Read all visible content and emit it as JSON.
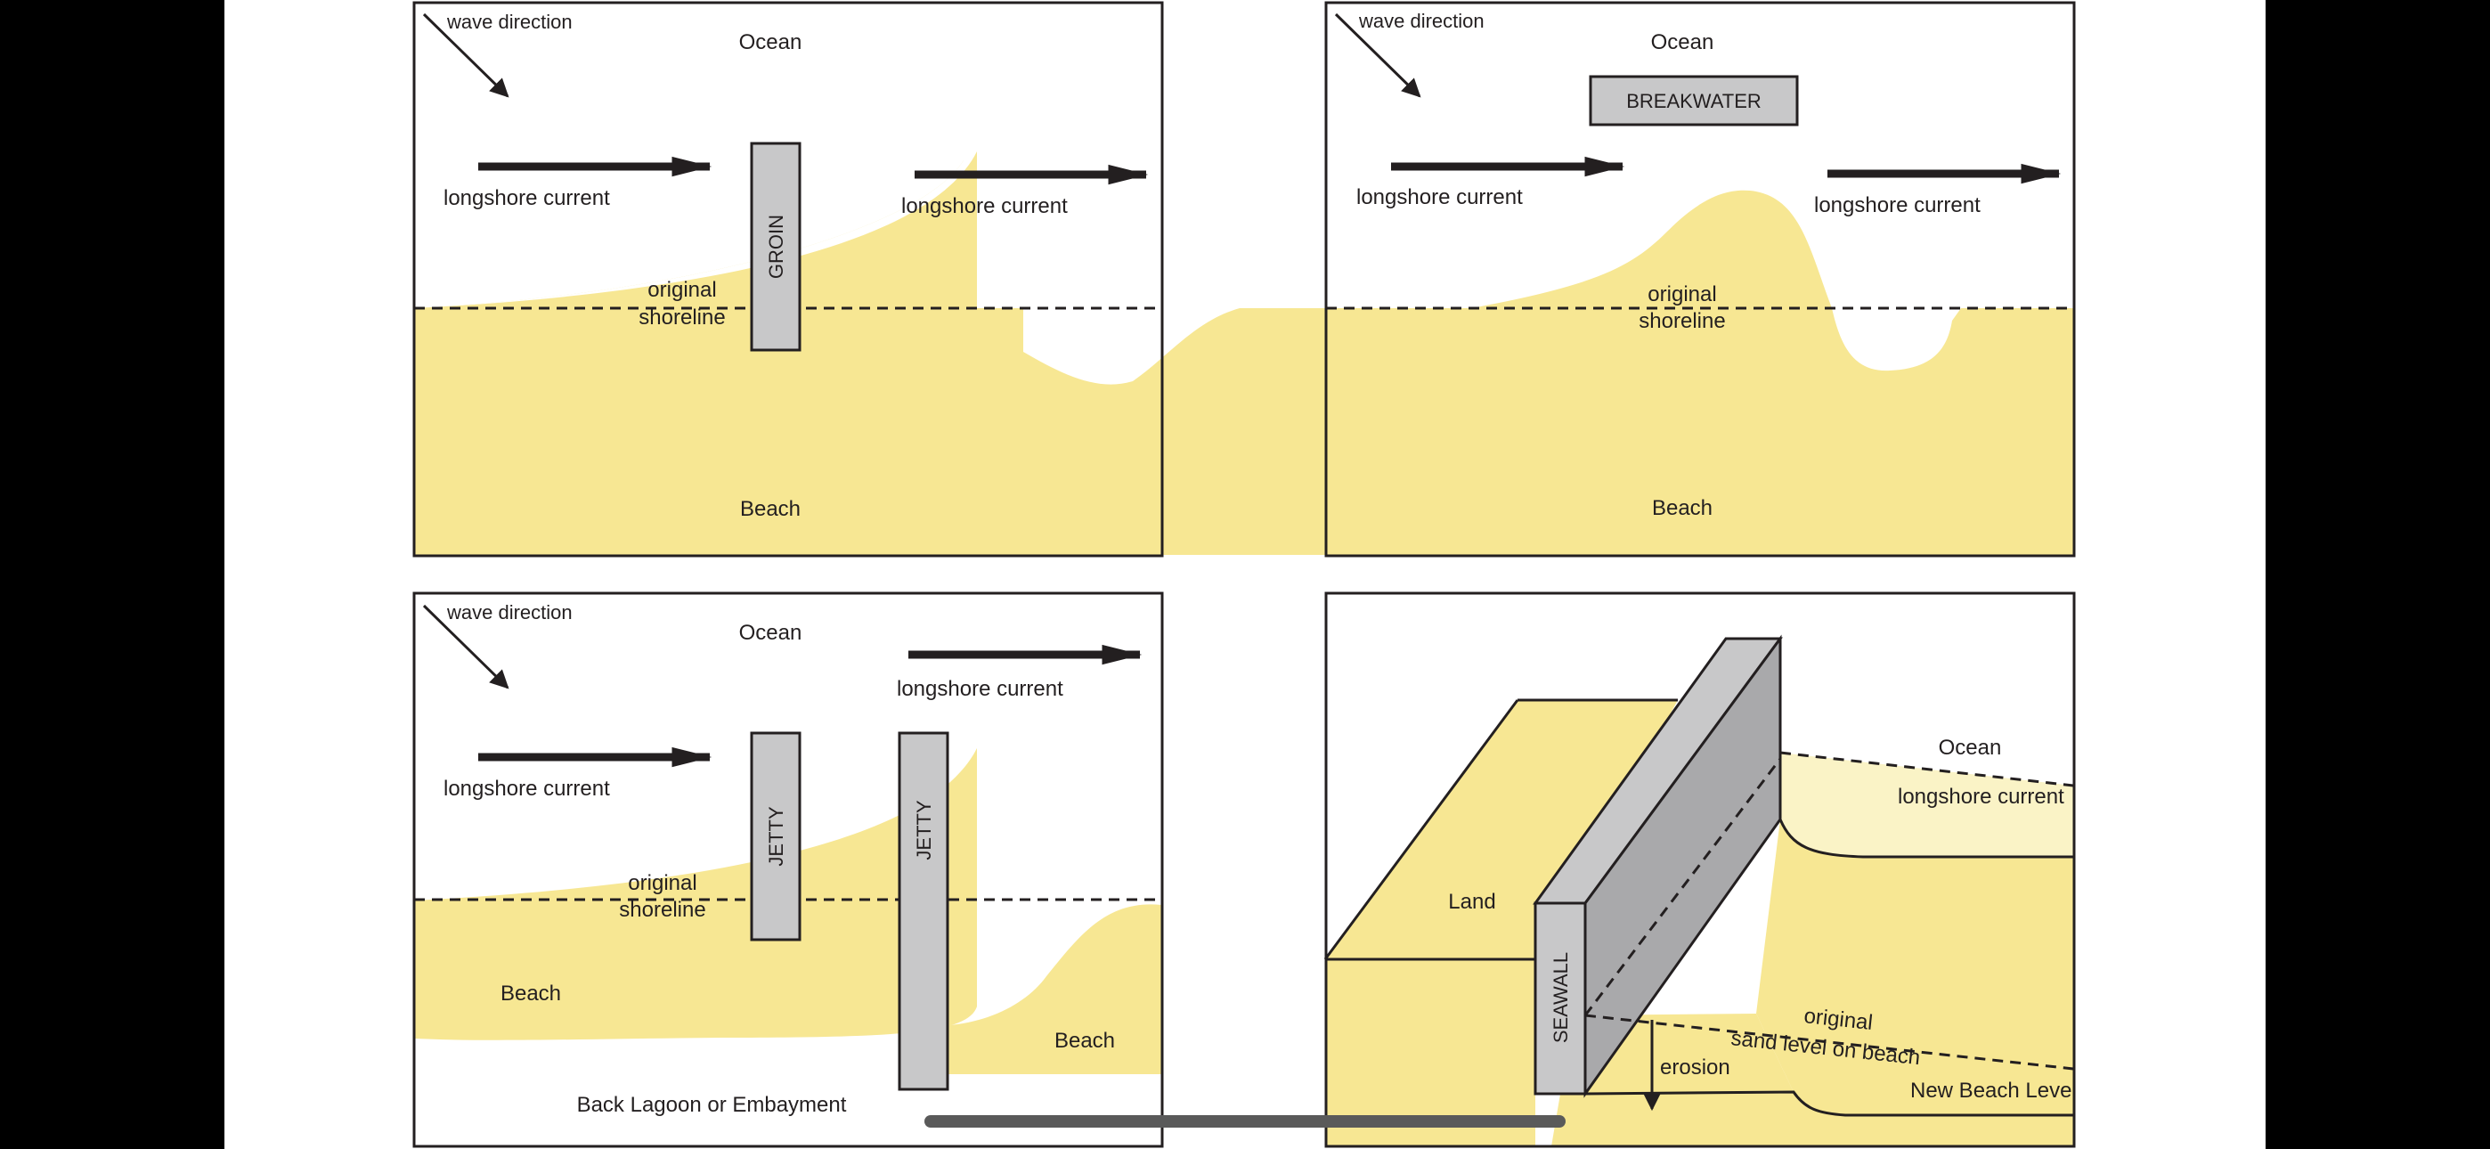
{
  "colors": {
    "sand": "#f7e793",
    "structure": "#c8c8c9",
    "ink": "#231f20",
    "letterbox": "#000000"
  },
  "panels": [
    {
      "id": "groin",
      "wave_direction": "wave direction",
      "ocean": "Ocean",
      "longshore_left": "longshore current",
      "longshore_right": "longshore current",
      "structure": "GROIN",
      "original": "original",
      "shoreline": "shoreline",
      "beach": "Beach"
    },
    {
      "id": "breakwater",
      "wave_direction": "wave direction",
      "ocean": "Ocean",
      "structure": "BREAKWATER",
      "longshore_left": "longshore current",
      "longshore_right": "longshore current",
      "original": "original",
      "shoreline": "shoreline",
      "beach": "Beach"
    },
    {
      "id": "jetty",
      "wave_direction": "wave direction",
      "ocean": "Ocean",
      "longshore_left": "longshore current",
      "longshore_right": "longshore current",
      "structure_left": "JETTY",
      "structure_right": "JETTY",
      "original": "original",
      "shoreline": "shoreline",
      "beach_left": "Beach",
      "beach_right": "Beach",
      "back_lagoon": "Back Lagoon or Embayment"
    },
    {
      "id": "seawall",
      "ocean": "Ocean",
      "longshore": "longshore current",
      "land": "Land",
      "structure": "SEAWALL",
      "original": "original",
      "sand_level": "sand level on beach",
      "erosion": "erosion",
      "new_beach_level": "New Beach Level"
    }
  ]
}
